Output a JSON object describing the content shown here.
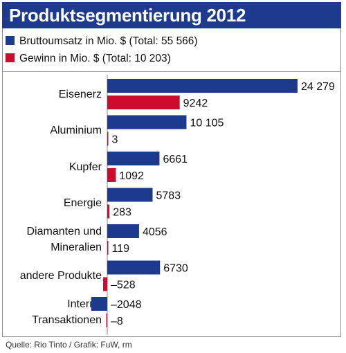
{
  "title": "Produktsegmentierung 2012",
  "legend": [
    {
      "label": "Bruttoumsatz in Mio. $ (Total: 55 566)",
      "color": "#1d3a8e"
    },
    {
      "label": "Gewinn in Mio. $ (Total: 10 203)",
      "color": "#cc0c2f"
    }
  ],
  "source": "Quelle: Rio Tinto / Grafik: FuW, rm",
  "chart_data": {
    "type": "bar",
    "orientation": "horizontal",
    "categories": [
      [
        "Eisenerz"
      ],
      [
        "Aluminium"
      ],
      [
        "Kupfer"
      ],
      [
        "Energie"
      ],
      [
        "Diamanten und",
        "Mineralien"
      ],
      [
        "andere Produkte"
      ],
      [
        "Interne",
        "Transaktionen"
      ]
    ],
    "series": [
      {
        "name": "Bruttoumsatz in Mio. $",
        "color": "#1d3a8e",
        "values": [
          24279,
          10105,
          6661,
          5783,
          4056,
          6730,
          -2048
        ],
        "labels": [
          "24 279",
          "10 105",
          "6661",
          "5783",
          "4056",
          "6730",
          "–2048"
        ]
      },
      {
        "name": "Gewinn in Mio. $",
        "color": "#cc0c2f",
        "values": [
          9242,
          3,
          1092,
          283,
          119,
          -528,
          -8
        ],
        "labels": [
          "9242",
          "3",
          "1092",
          "283",
          "119",
          "–528",
          "–8"
        ]
      }
    ],
    "xlim": [
      -2048,
      24279
    ],
    "grid": false,
    "legend_position": "top"
  }
}
